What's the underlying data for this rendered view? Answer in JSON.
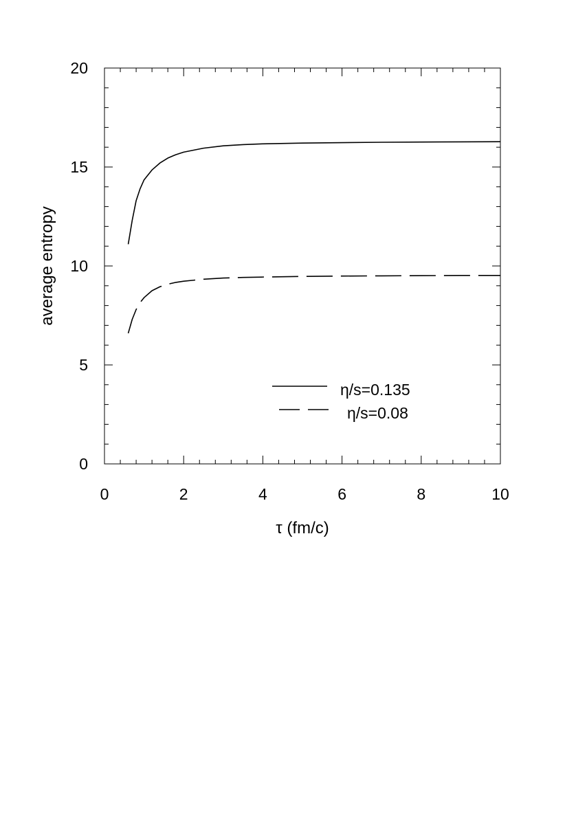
{
  "chart_data": {
    "type": "line",
    "title": "",
    "xlabel": "τ (fm/c)",
    "ylabel": "average entropy",
    "xlim": [
      0,
      10
    ],
    "ylim": [
      0,
      20
    ],
    "xticks": [
      "0",
      "2",
      "4",
      "6",
      "8",
      "10"
    ],
    "yticks": [
      "0",
      "5",
      "10",
      "15",
      "20"
    ],
    "grid": false,
    "legend_position": "lower-right",
    "series": [
      {
        "name": "η/s=0.135",
        "style": "solid",
        "color": "#000000",
        "x": [
          0.6,
          0.7,
          0.8,
          0.9,
          1.0,
          1.2,
          1.4,
          1.6,
          1.8,
          2.0,
          2.5,
          3.0,
          3.5,
          4.0,
          5.0,
          6.0,
          7.0,
          8.0,
          9.0,
          10.0
        ],
        "y": [
          11.1,
          12.3,
          13.3,
          13.9,
          14.35,
          14.85,
          15.2,
          15.45,
          15.62,
          15.75,
          15.95,
          16.07,
          16.13,
          16.17,
          16.21,
          16.23,
          16.25,
          16.26,
          16.27,
          16.28
        ]
      },
      {
        "name": "η/s=0.08",
        "style": "dashed",
        "color": "#000000",
        "x": [
          0.6,
          0.7,
          0.8,
          0.9,
          1.0,
          1.2,
          1.4,
          1.6,
          1.8,
          2.0,
          2.5,
          3.0,
          3.5,
          4.0,
          5.0,
          6.0,
          7.0,
          8.0,
          9.0,
          10.0
        ],
        "y": [
          6.6,
          7.3,
          7.8,
          8.15,
          8.4,
          8.75,
          8.95,
          9.08,
          9.17,
          9.23,
          9.33,
          9.39,
          9.42,
          9.44,
          9.47,
          9.49,
          9.5,
          9.51,
          9.52,
          9.52
        ]
      }
    ]
  }
}
